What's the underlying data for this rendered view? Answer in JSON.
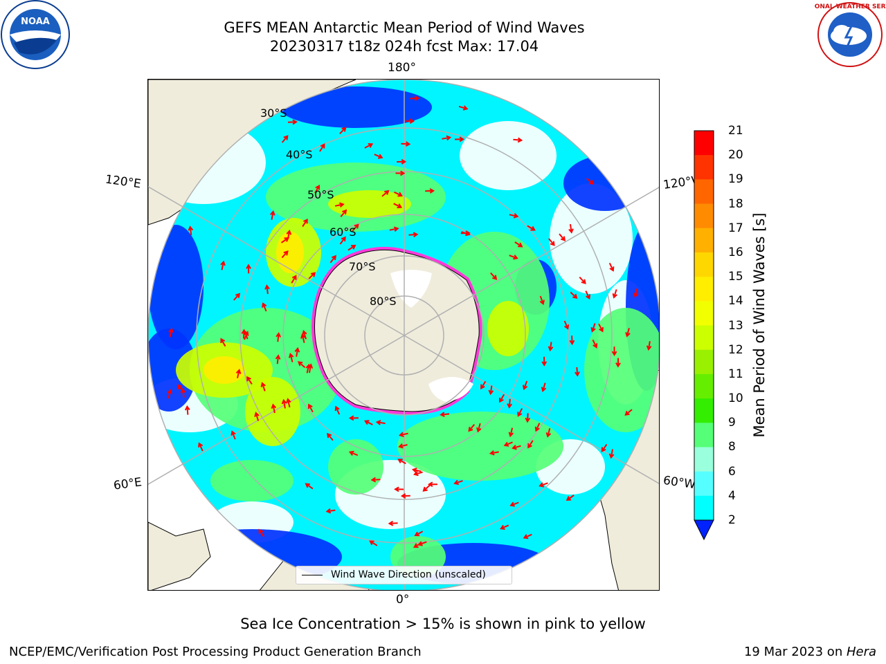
{
  "header": {
    "title_line1": "GEFS MEAN Antarctic Mean Period of Wind Waves",
    "title_line2": "20230317 t18z 024h fcst   Max: 17.04"
  },
  "map": {
    "projection": "south-polar-stereographic",
    "land_color": "#efecdc",
    "ice_colors": [
      "#ff3ad8",
      "#ff7ab8",
      "#ffc070",
      "#fff27a"
    ],
    "arrow_color": "#ff0000",
    "longitude_labels": {
      "top": "180°",
      "upper_left": "120°E",
      "upper_right": "120°W",
      "lower_left": "60°E",
      "lower_right": "60°W",
      "bottom": "0°"
    },
    "latitude_labels": [
      "30°S",
      "40°S",
      "50°S",
      "60°S",
      "70°S",
      "80°S"
    ],
    "legend": {
      "label": "Wind Wave Direction (unscaled)"
    }
  },
  "colorbar": {
    "title": "Mean Period of Wind Waves [s]",
    "ticks": [
      "21",
      "20",
      "19",
      "18",
      "17",
      "16",
      "15",
      "14",
      "13",
      "12",
      "11",
      "10",
      "9",
      "8",
      "6",
      "4",
      "2"
    ],
    "colors": [
      "#ff0000",
      "#ff3300",
      "#ff6600",
      "#ff8c00",
      "#ffb000",
      "#ffd700",
      "#ffee00",
      "#f2ff00",
      "#ccff00",
      "#99f000",
      "#66ee00",
      "#33ee00",
      "#55ff77",
      "#99ffdd",
      "#55ffff",
      "#00ffff",
      "#0077ff"
    ],
    "extend_color": "#0022ff"
  },
  "note": "Sea Ice Concentration > 15% is shown in pink to yellow",
  "footer": {
    "left": "NCEP/EMC/Verification Post Processing Product Generation Branch",
    "right_prefix": "19 Mar 2023 on ",
    "right_host": "Hera"
  },
  "logos": {
    "noaa_text": "NOAA",
    "nws_text": "NATIONAL WEATHER SERVICE"
  }
}
